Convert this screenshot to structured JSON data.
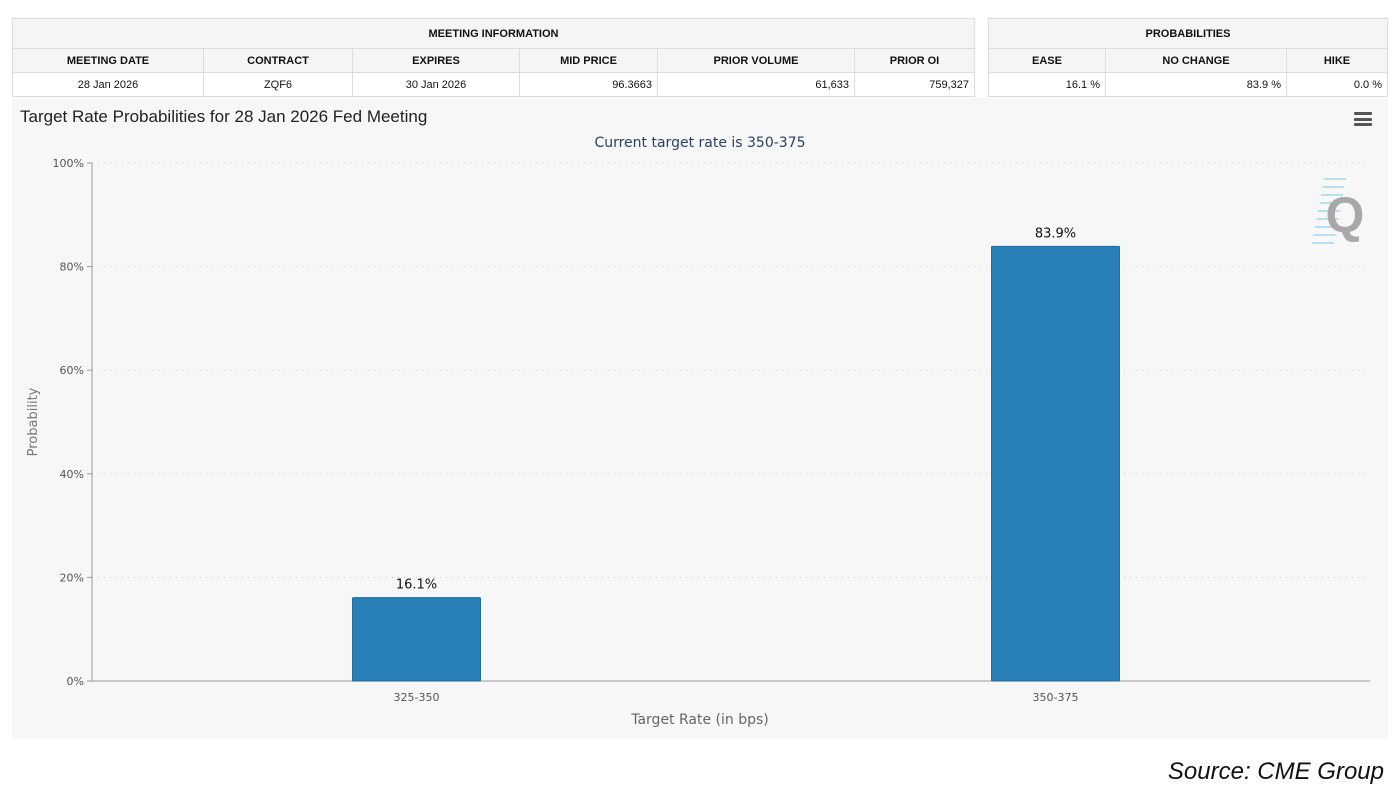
{
  "meeting_info": {
    "header": "MEETING INFORMATION",
    "columns": [
      "MEETING DATE",
      "CONTRACT",
      "EXPIRES",
      "MID PRICE",
      "PRIOR VOLUME",
      "PRIOR OI"
    ],
    "row": [
      "28 Jan 2026",
      "ZQF6",
      "30 Jan 2026",
      "96.3663",
      "61,633",
      "759,327"
    ]
  },
  "probabilities": {
    "header": "PROBABILITIES",
    "columns": [
      "EASE",
      "NO CHANGE",
      "HIKE"
    ],
    "row": [
      "16.1 %",
      "83.9 %",
      "0.0 %"
    ]
  },
  "chart_menu_icon": "hamburger-menu-icon",
  "logo_text": "Q",
  "source": "Source: CME Group",
  "colors": {
    "bar": "#2980b9",
    "background": "#f7f7f7"
  },
  "chart_data": {
    "type": "bar",
    "title": "Target Rate Probabilities for 28 Jan 2026 Fed Meeting",
    "subtitle": "Current target rate is 350-375",
    "xlabel": "Target Rate (in bps)",
    "ylabel": "Probability",
    "categories": [
      "325-350",
      "350-375"
    ],
    "values": [
      16.1,
      83.9
    ],
    "data_labels": [
      "16.1%",
      "83.9%"
    ],
    "ylim": [
      0,
      100
    ],
    "yticks": [
      "0%",
      "20%",
      "40%",
      "60%",
      "80%",
      "100%"
    ],
    "grid": true
  }
}
